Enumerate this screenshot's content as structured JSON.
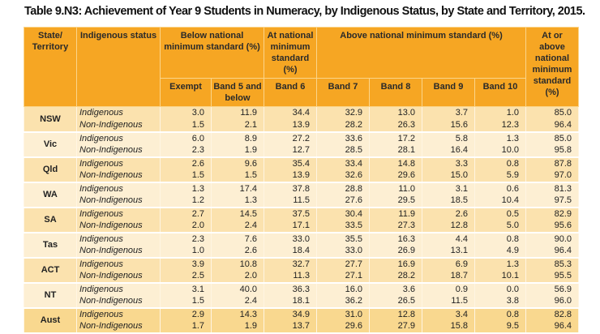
{
  "title": "Table 9.N3: Achievement of Year 9 Students in Numeracy, by Indigenous Status, by State and Territory, 2015.",
  "colors": {
    "header": "#f6a623",
    "row_dark": "#fbe2ae",
    "row_light": "#fdefd3",
    "total_row": "#f9d88f"
  },
  "header": {
    "state": "State/ Territory",
    "status": "Indigenous status",
    "below": "Below national minimum standard (%)",
    "at": "At national minimum standard (%)",
    "above": "Above national minimum standard (%)",
    "at_or_above": "At or above national minimum standard (%)",
    "sub": [
      "Exempt",
      "Band 5 and below",
      "Band 6",
      "Band 7",
      "Band 8",
      "Band 9",
      "Band 10"
    ]
  },
  "status_labels": [
    "Indigenous",
    "Non-Indigenous"
  ],
  "rows": [
    {
      "state": "NSW",
      "ind": [
        "3.0",
        "11.9",
        "34.4",
        "32.9",
        "13.0",
        "3.7",
        "1.0",
        "85.0"
      ],
      "non": [
        "1.5",
        "2.1",
        "13.9",
        "28.2",
        "26.3",
        "15.6",
        "12.3",
        "96.4"
      ]
    },
    {
      "state": "Vic",
      "ind": [
        "6.0",
        "8.9",
        "27.2",
        "33.6",
        "17.2",
        "5.8",
        "1.3",
        "85.0"
      ],
      "non": [
        "2.3",
        "1.9",
        "12.7",
        "28.5",
        "28.1",
        "16.4",
        "10.0",
        "95.8"
      ]
    },
    {
      "state": "Qld",
      "ind": [
        "2.6",
        "9.6",
        "35.4",
        "33.4",
        "14.8",
        "3.3",
        "0.8",
        "87.8"
      ],
      "non": [
        "1.5",
        "1.5",
        "13.9",
        "32.6",
        "29.6",
        "15.0",
        "5.9",
        "97.0"
      ]
    },
    {
      "state": "WA",
      "ind": [
        "1.3",
        "17.4",
        "37.8",
        "28.8",
        "11.0",
        "3.1",
        "0.6",
        "81.3"
      ],
      "non": [
        "1.2",
        "1.3",
        "11.5",
        "27.6",
        "29.5",
        "18.5",
        "10.4",
        "97.5"
      ]
    },
    {
      "state": "SA",
      "ind": [
        "2.7",
        "14.5",
        "37.5",
        "30.4",
        "11.9",
        "2.6",
        "0.5",
        "82.9"
      ],
      "non": [
        "2.0",
        "2.4",
        "17.1",
        "33.5",
        "27.3",
        "12.8",
        "5.0",
        "95.6"
      ]
    },
    {
      "state": "Tas",
      "ind": [
        "2.3",
        "7.6",
        "33.0",
        "35.5",
        "16.3",
        "4.4",
        "0.8",
        "90.0"
      ],
      "non": [
        "1.0",
        "2.6",
        "18.4",
        "33.0",
        "26.9",
        "13.1",
        "4.9",
        "96.4"
      ]
    },
    {
      "state": "ACT",
      "ind": [
        "3.9",
        "10.8",
        "32.7",
        "27.7",
        "16.9",
        "6.9",
        "1.3",
        "85.3"
      ],
      "non": [
        "2.5",
        "2.0",
        "11.3",
        "27.1",
        "28.2",
        "18.7",
        "10.1",
        "95.5"
      ]
    },
    {
      "state": "NT",
      "ind": [
        "3.1",
        "40.0",
        "36.3",
        "16.0",
        "3.6",
        "0.9",
        "0.0",
        "56.9"
      ],
      "non": [
        "1.5",
        "2.4",
        "18.1",
        "36.2",
        "26.5",
        "11.5",
        "3.8",
        "96.0"
      ]
    },
    {
      "state": "Aust",
      "ind": [
        "2.9",
        "14.3",
        "34.9",
        "31.0",
        "12.8",
        "3.4",
        "0.8",
        "82.8"
      ],
      "non": [
        "1.7",
        "1.9",
        "13.7",
        "29.6",
        "27.9",
        "15.8",
        "9.5",
        "96.4"
      ]
    }
  ]
}
